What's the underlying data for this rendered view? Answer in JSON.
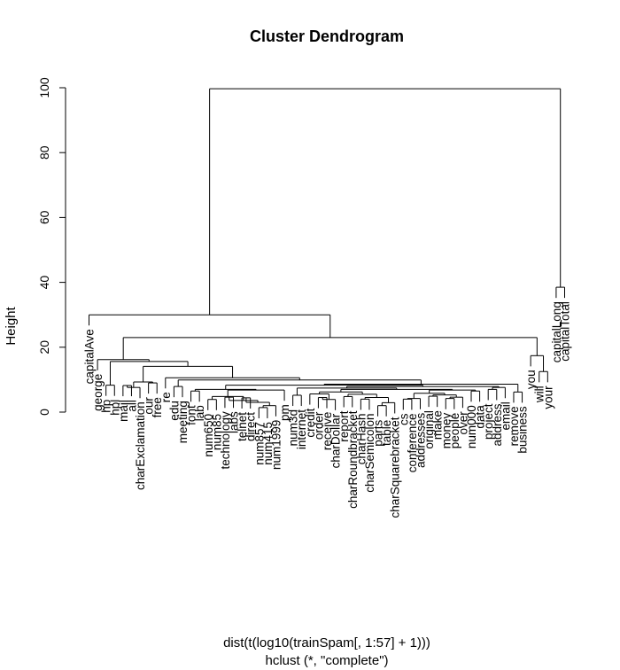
{
  "chart_data": {
    "type": "dendrogram",
    "title": "Cluster Dendrogram",
    "ylabel": "Height",
    "xlabel": "dist(t(log10(trainSpam[, 1:57] + 1)))",
    "sublabel": "hclust (*, \"complete\")",
    "ylim": [
      0,
      100
    ],
    "yticks": [
      0,
      20,
      40,
      60,
      80,
      100
    ],
    "leaves": [
      "capitalAve",
      "george",
      "hp",
      "hpl",
      "mail",
      "all",
      "charExclamation",
      "our",
      "free",
      "re",
      "edu",
      "meeting",
      "font",
      "lab",
      "num650",
      "num85",
      "technology",
      "labs",
      "telnet",
      "direct",
      "num857",
      "num415",
      "num1999",
      "pm",
      "num3d",
      "internet",
      "credit",
      "order",
      "receive",
      "charDollar",
      "report",
      "charRoundbracket",
      "charHash",
      "charSemicolon",
      "parts",
      "table",
      "charSquarebracket",
      "cs",
      "conference",
      "addresses",
      "original",
      "make",
      "money",
      "people",
      "over",
      "num000",
      "data",
      "project",
      "address",
      "email",
      "remove",
      "business",
      "you",
      "will",
      "your",
      "capitalLong",
      "capitalTotal"
    ],
    "merges": [
      {
        "id": "A",
        "left": "hp",
        "right": "hpl",
        "height": 8.3
      },
      {
        "id": "B",
        "left": "mail",
        "right": "all",
        "height": 8.2
      },
      {
        "id": "C",
        "left": "B",
        "right": "charExclamation",
        "height": 7.6
      },
      {
        "id": "D",
        "left": "our",
        "right": "free",
        "height": 9.0
      },
      {
        "id": "E",
        "left": "C",
        "right": "D",
        "height": 9.3
      },
      {
        "id": "F",
        "left": "edu",
        "right": "meeting",
        "height": 7.9
      },
      {
        "id": "G",
        "left": "font",
        "right": "lab",
        "height": 6.5
      },
      {
        "id": "H",
        "left": "num650",
        "right": "num85",
        "height": 3.9
      },
      {
        "id": "I",
        "left": "technology",
        "right": "labs",
        "height": 4.6
      },
      {
        "id": "J",
        "left": "telnet",
        "right": "direct",
        "height": 4.4
      },
      {
        "id": "K",
        "left": "num857",
        "right": "num415",
        "height": 1.4
      },
      {
        "id": "L",
        "left": "K",
        "right": "num1999",
        "height": 2.0
      },
      {
        "id": "M",
        "left": "J",
        "right": "L",
        "height": 3.0
      },
      {
        "id": "N",
        "left": "I",
        "right": "M",
        "height": 3.6
      },
      {
        "id": "O",
        "left": "H",
        "right": "N",
        "height": 4.8
      },
      {
        "id": "P",
        "left": "O",
        "right": "pm",
        "height": 6.8
      },
      {
        "id": "Q",
        "left": "G",
        "right": "P",
        "height": 7.0
      },
      {
        "id": "R",
        "left": "num3d",
        "right": "internet",
        "height": 5.2
      },
      {
        "id": "S",
        "left": "order",
        "right": "receive",
        "height": 4.5
      },
      {
        "id": "T",
        "left": "S",
        "right": "charDollar",
        "height": 3.9
      },
      {
        "id": "U",
        "left": "credit",
        "right": "T",
        "height": 5.6
      },
      {
        "id": "V",
        "left": "report",
        "right": "charRoundbracket",
        "height": 4.8
      },
      {
        "id": "W",
        "left": "charHash",
        "right": "charSemicolon",
        "height": 4.0
      },
      {
        "id": "X",
        "left": "parts",
        "right": "table",
        "height": 2.0
      },
      {
        "id": "Y",
        "left": "X",
        "right": "charSquarebracket",
        "height": 2.9
      },
      {
        "id": "Z",
        "left": "W",
        "right": "Y",
        "height": 4.5
      },
      {
        "id": "AA",
        "left": "V",
        "right": "Z",
        "height": 5.5
      },
      {
        "id": "AB",
        "left": "U",
        "right": "AA",
        "height": 6.2
      },
      {
        "id": "AC",
        "left": "cs",
        "right": "conference",
        "height": 4.0
      },
      {
        "id": "AD",
        "left": "AC",
        "right": "addresses",
        "height": 4.2
      },
      {
        "id": "AE",
        "left": "original",
        "right": "make",
        "height": 4.9
      },
      {
        "id": "AF",
        "left": "money",
        "right": "people",
        "height": 4.2
      },
      {
        "id": "AG",
        "left": "AF",
        "right": "over",
        "height": 4.6
      },
      {
        "id": "AH",
        "left": "AE",
        "right": "AG",
        "height": 5.3
      },
      {
        "id": "AI",
        "left": "AD",
        "right": "AH",
        "height": 5.8
      },
      {
        "id": "AJ",
        "left": "num000",
        "right": "data",
        "height": 6.5
      },
      {
        "id": "AK",
        "left": "AI",
        "right": "AJ",
        "height": 6.8
      },
      {
        "id": "AL",
        "left": "AB",
        "right": "AK",
        "height": 7.0
      },
      {
        "id": "AM",
        "left": "R",
        "right": "AL",
        "height": 7.4
      },
      {
        "id": "AN",
        "left": "project",
        "right": "address",
        "height": 7.0
      },
      {
        "id": "AO",
        "left": "AN",
        "right": "email",
        "height": 7.6
      },
      {
        "id": "AP",
        "left": "AM",
        "right": "AO",
        "height": 7.9
      },
      {
        "id": "AQ",
        "left": "Q",
        "right": "AP",
        "height": 8.3
      },
      {
        "id": "AR",
        "left": "remove",
        "right": "business",
        "height": 6.2
      },
      {
        "id": "AS",
        "left": "AQ",
        "right": "AR",
        "height": 8.6
      },
      {
        "id": "AT",
        "left": "F",
        "right": "AS",
        "height": 9.9
      },
      {
        "id": "AU",
        "left": "re",
        "right": "AT",
        "height": 10.6
      },
      {
        "id": "AV",
        "left": "E",
        "right": "AU",
        "height": 14.1
      },
      {
        "id": "AW",
        "left": "A",
        "right": "AV",
        "height": 15.6
      },
      {
        "id": "AX",
        "left": "george",
        "right": "AW",
        "height": 16.2
      },
      {
        "id": "AY",
        "left": "will",
        "right": "your",
        "height": 12.5
      },
      {
        "id": "AZ",
        "left": "you",
        "right": "AY",
        "height": 17.4
      },
      {
        "id": "BA",
        "left": "AX",
        "right": "AZ",
        "height": 23.0
      },
      {
        "id": "BB",
        "left": "capitalAve",
        "right": "BA",
        "height": 30.0
      },
      {
        "id": "BC",
        "left": "capitalLong",
        "right": "capitalTotal",
        "height": 38.5
      },
      {
        "id": "BD",
        "left": "BB",
        "right": "BC",
        "height": 99.7
      }
    ]
  }
}
